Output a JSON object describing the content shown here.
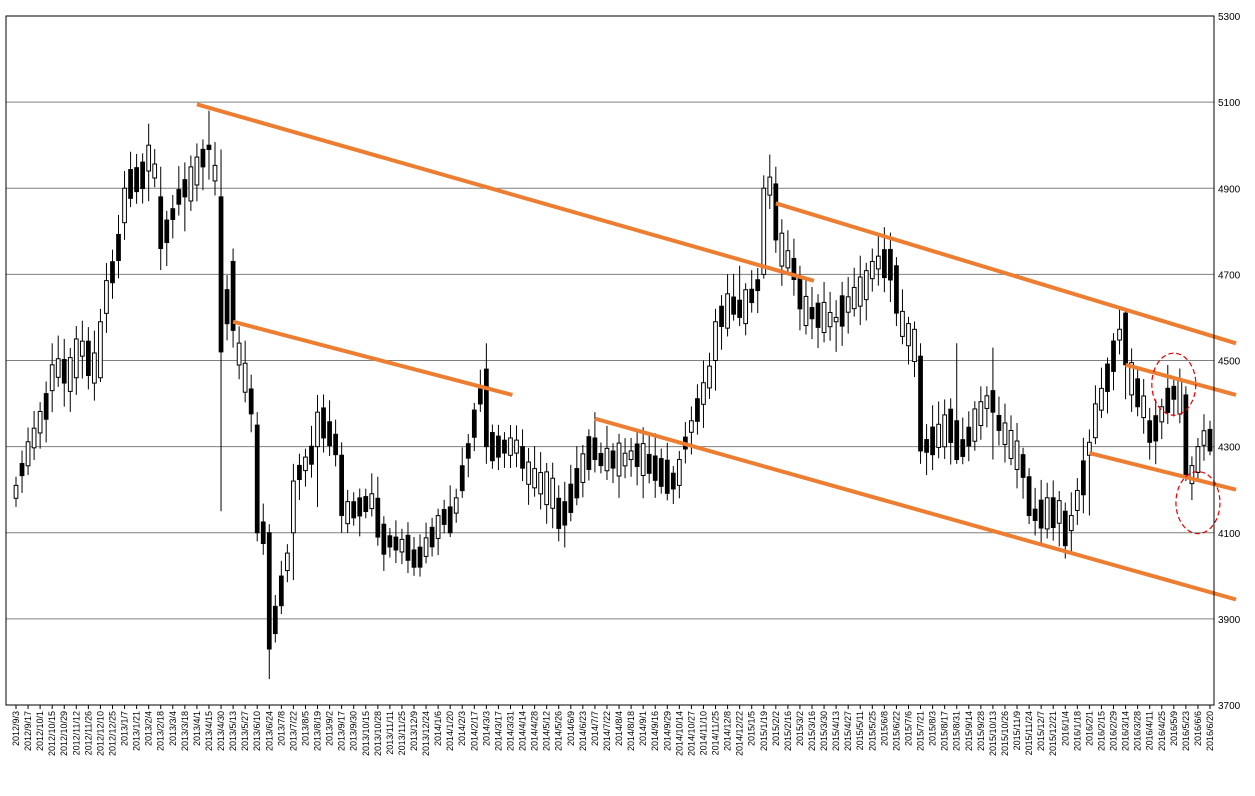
{
  "chart_data": {
    "type": "candlestick",
    "title": "",
    "xlabel": "",
    "ylabel": "",
    "ylim": [
      3700,
      5300
    ],
    "yticks": [
      3700,
      3900,
      4100,
      4300,
      4500,
      4700,
      4900,
      5100,
      5300
    ],
    "grid": "horizontal",
    "colors": {
      "gridline": "#808080",
      "axis": "#000000",
      "up_candle": "#ffffff",
      "down_candle": "#000000",
      "trendline": "#ed7d31",
      "highlight_circle": "#e00000"
    },
    "x_tick_labels": [
      "2012/9/3",
      "2012/9/17",
      "2012/10/1",
      "2012/10/15",
      "2012/10/29",
      "2012/11/12",
      "2012/11/26",
      "2012/12/10",
      "2012/12/25",
      "2013/1/7",
      "2013/1/21",
      "2013/2/4",
      "2013/2/18",
      "2013/3/4",
      "2013/3/18",
      "2013/4/1",
      "2013/4/15",
      "2013/4/30",
      "2013/5/13",
      "2013/5/27",
      "2013/6/10",
      "2013/6/24",
      "2013/7/8",
      "2013/7/22",
      "2013/8/5",
      "2013/8/19",
      "2013/9/2",
      "2013/9/17",
      "2013/9/30",
      "2013/10/15",
      "2013/10/28",
      "2013/11/11",
      "2013/11/25",
      "2013/12/9",
      "2013/12/24",
      "2014/1/6",
      "2014/1/20",
      "2014/2/3",
      "2014/2/17",
      "2014/3/3",
      "2014/3/17",
      "2014/3/31",
      "2014/4/14",
      "2014/4/28",
      "2014/5/12",
      "2014/5/26",
      "2014/6/9",
      "2014/6/23",
      "2014/7/7",
      "2014/7/22",
      "2014/8/4",
      "2014/8/18",
      "2014/9/1",
      "2014/9/16",
      "2014/9/29",
      "2014/10/14",
      "2014/10/27",
      "2014/11/10",
      "2014/11/25",
      "2014/12/8",
      "2014/12/22",
      "2015/1/5",
      "2015/1/19",
      "2015/2/2",
      "2015/2/16",
      "2015/3/2",
      "2015/3/16",
      "2015/3/30",
      "2015/4/13",
      "2015/4/27",
      "2015/5/11",
      "2015/5/25",
      "2015/6/8",
      "2015/6/22",
      "2015/7/6",
      "2015/7/21",
      "2015/8/3",
      "2015/8/17",
      "2015/8/31",
      "2015/9/14",
      "2015/9/28",
      "2015/10/13",
      "2015/10/26",
      "2015/11/9",
      "2015/11/24",
      "2015/12/7",
      "2015/12/21",
      "2016/1/4",
      "2016/1/18",
      "2016/2/1",
      "2016/2/15",
      "2016/2/29",
      "2016/3/14",
      "2016/3/28",
      "2016/4/11",
      "2016/4/25",
      "2016/5/9",
      "2016/5/23",
      "2016/6/6",
      "2016/6/20"
    ],
    "ohlc_weekly_anchor_closes": [
      {
        "x": "2012/9/3",
        "o": 4180,
        "h": 4230,
        "l": 4160,
        "c": 4210
      },
      {
        "x": "2012/10/15",
        "o": 4430,
        "h": 4540,
        "l": 4380,
        "c": 4490
      },
      {
        "x": "2012/11/12",
        "o": 4460,
        "h": 4580,
        "l": 4420,
        "c": 4550
      },
      {
        "x": "2012/12/10",
        "o": 4460,
        "h": 4620,
        "l": 4450,
        "c": 4590
      },
      {
        "x": "2013/1/7",
        "o": 4820,
        "h": 4940,
        "l": 4780,
        "c": 4900
      },
      {
        "x": "2013/2/4",
        "o": 4940,
        "h": 5050,
        "l": 4870,
        "c": 5000
      },
      {
        "x": "2013/2/18",
        "o": 4880,
        "h": 4950,
        "l": 4710,
        "c": 4760
      },
      {
        "x": "2013/3/18",
        "o": 4920,
        "h": 4960,
        "l": 4800,
        "c": 4880
      },
      {
        "x": "2013/4/15",
        "o": 5000,
        "h": 5080,
        "l": 4920,
        "c": 4990
      },
      {
        "x": "2013/4/30",
        "o": 4880,
        "h": 4990,
        "l": 4150,
        "c": 4520
      },
      {
        "x": "2013/5/13",
        "o": 4730,
        "h": 4760,
        "l": 4530,
        "c": 4570
      },
      {
        "x": "2013/6/10",
        "o": 4350,
        "h": 4380,
        "l": 4080,
        "c": 4100
      },
      {
        "x": "2013/6/24",
        "o": 4100,
        "h": 4120,
        "l": 3760,
        "c": 3830
      },
      {
        "x": "2013/7/22",
        "o": 4100,
        "h": 4260,
        "l": 3990,
        "c": 4220
      },
      {
        "x": "2013/8/19",
        "o": 4300,
        "h": 4420,
        "l": 4160,
        "c": 4380
      },
      {
        "x": "2013/9/17",
        "o": 4280,
        "h": 4310,
        "l": 4100,
        "c": 4140
      },
      {
        "x": "2013/10/28",
        "o": 4180,
        "h": 4230,
        "l": 4070,
        "c": 4090
      },
      {
        "x": "2013/12/9",
        "o": 4060,
        "h": 4090,
        "l": 4000,
        "c": 4020
      },
      {
        "x": "2014/1/20",
        "o": 4160,
        "h": 4210,
        "l": 4090,
        "c": 4100
      },
      {
        "x": "2014/3/3",
        "o": 4480,
        "h": 4540,
        "l": 4260,
        "c": 4300
      },
      {
        "x": "2014/4/14",
        "o": 4300,
        "h": 4340,
        "l": 4220,
        "c": 4250
      },
      {
        "x": "2014/5/26",
        "o": 4180,
        "h": 4210,
        "l": 4080,
        "c": 4110
      },
      {
        "x": "2014/7/7",
        "o": 4320,
        "h": 4380,
        "l": 4240,
        "c": 4270
      },
      {
        "x": "2014/8/18",
        "o": 4270,
        "h": 4320,
        "l": 4230,
        "c": 4290
      },
      {
        "x": "2014/10/14",
        "o": 4210,
        "h": 4290,
        "l": 4180,
        "c": 4270
      },
      {
        "x": "2014/11/25",
        "o": 4500,
        "h": 4620,
        "l": 4430,
        "c": 4590
      },
      {
        "x": "2014/12/22",
        "o": 4640,
        "h": 4720,
        "l": 4580,
        "c": 4600
      },
      {
        "x": "2015/1/19",
        "o": 4700,
        "h": 4930,
        "l": 4690,
        "c": 4900
      },
      {
        "x": "2015/2/2",
        "o": 4910,
        "h": 4950,
        "l": 4750,
        "c": 4780
      },
      {
        "x": "2015/3/2",
        "o": 4690,
        "h": 4720,
        "l": 4570,
        "c": 4620
      },
      {
        "x": "2015/4/13",
        "o": 4590,
        "h": 4640,
        "l": 4520,
        "c": 4600
      },
      {
        "x": "2015/5/25",
        "o": 4690,
        "h": 4760,
        "l": 4660,
        "c": 4730
      },
      {
        "x": "2015/6/22",
        "o": 4720,
        "h": 4740,
        "l": 4580,
        "c": 4610
      },
      {
        "x": "2015/7/21",
        "o": 4510,
        "h": 4540,
        "l": 4260,
        "c": 4290
      },
      {
        "x": "2015/8/31",
        "o": 4360,
        "h": 4540,
        "l": 4260,
        "c": 4270
      },
      {
        "x": "2015/10/13",
        "o": 4430,
        "h": 4530,
        "l": 4270,
        "c": 4380
      },
      {
        "x": "2015/11/24",
        "o": 4230,
        "h": 4250,
        "l": 4120,
        "c": 4140
      },
      {
        "x": "2016/1/4",
        "o": 4150,
        "h": 4170,
        "l": 4040,
        "c": 4070
      },
      {
        "x": "2016/2/1",
        "o": 4280,
        "h": 4340,
        "l": 4140,
        "c": 4310
      },
      {
        "x": "2016/3/14",
        "o": 4610,
        "h": 4620,
        "l": 4410,
        "c": 4490
      },
      {
        "x": "2016/4/11",
        "o": 4360,
        "h": 4390,
        "l": 4270,
        "c": 4310
      },
      {
        "x": "2016/5/9",
        "o": 4440,
        "h": 4460,
        "l": 4370,
        "c": 4410
      },
      {
        "x": "2016/5/23",
        "o": 4420,
        "h": 4440,
        "l": 4220,
        "c": 4230
      },
      {
        "x": "2016/6/6",
        "o": 4240,
        "h": 4320,
        "l": 4220,
        "c": 4300
      },
      {
        "x": "2016/6/20",
        "o": 4340,
        "h": 4360,
        "l": 4280,
        "c": 4290
      }
    ],
    "trendlines": [
      {
        "from": {
          "x": "2013/4/1",
          "y": 5095
        },
        "to": {
          "x": "2015/2/16",
          "y": 4685
        }
      },
      {
        "from": {
          "x": "2015/2/2",
          "y": 4865
        },
        "to": {
          "x": "2016/6/20",
          "y": 4540
        }
      },
      {
        "from": {
          "x": "2013/5/13",
          "y": 4590
        },
        "to": {
          "x": "2014/3/3",
          "y": 4420
        }
      },
      {
        "from": {
          "x": "2014/7/7",
          "y": 4365
        },
        "to": {
          "x": "2016/6/20",
          "y": 3945
        }
      },
      {
        "from": {
          "x": "2016/3/14",
          "y": 4490
        },
        "to": {
          "x": "2016/6/20",
          "y": 4420
        }
      },
      {
        "from": {
          "x": "2016/2/1",
          "y": 4285
        },
        "to": {
          "x": "2016/6/20",
          "y": 4200
        }
      }
    ],
    "highlights": [
      {
        "x": "2016/5/9",
        "y": 4445,
        "style": "dashed-circle"
      },
      {
        "x": "2016/6/6",
        "y": 4170,
        "style": "dashed-circle"
      }
    ]
  }
}
